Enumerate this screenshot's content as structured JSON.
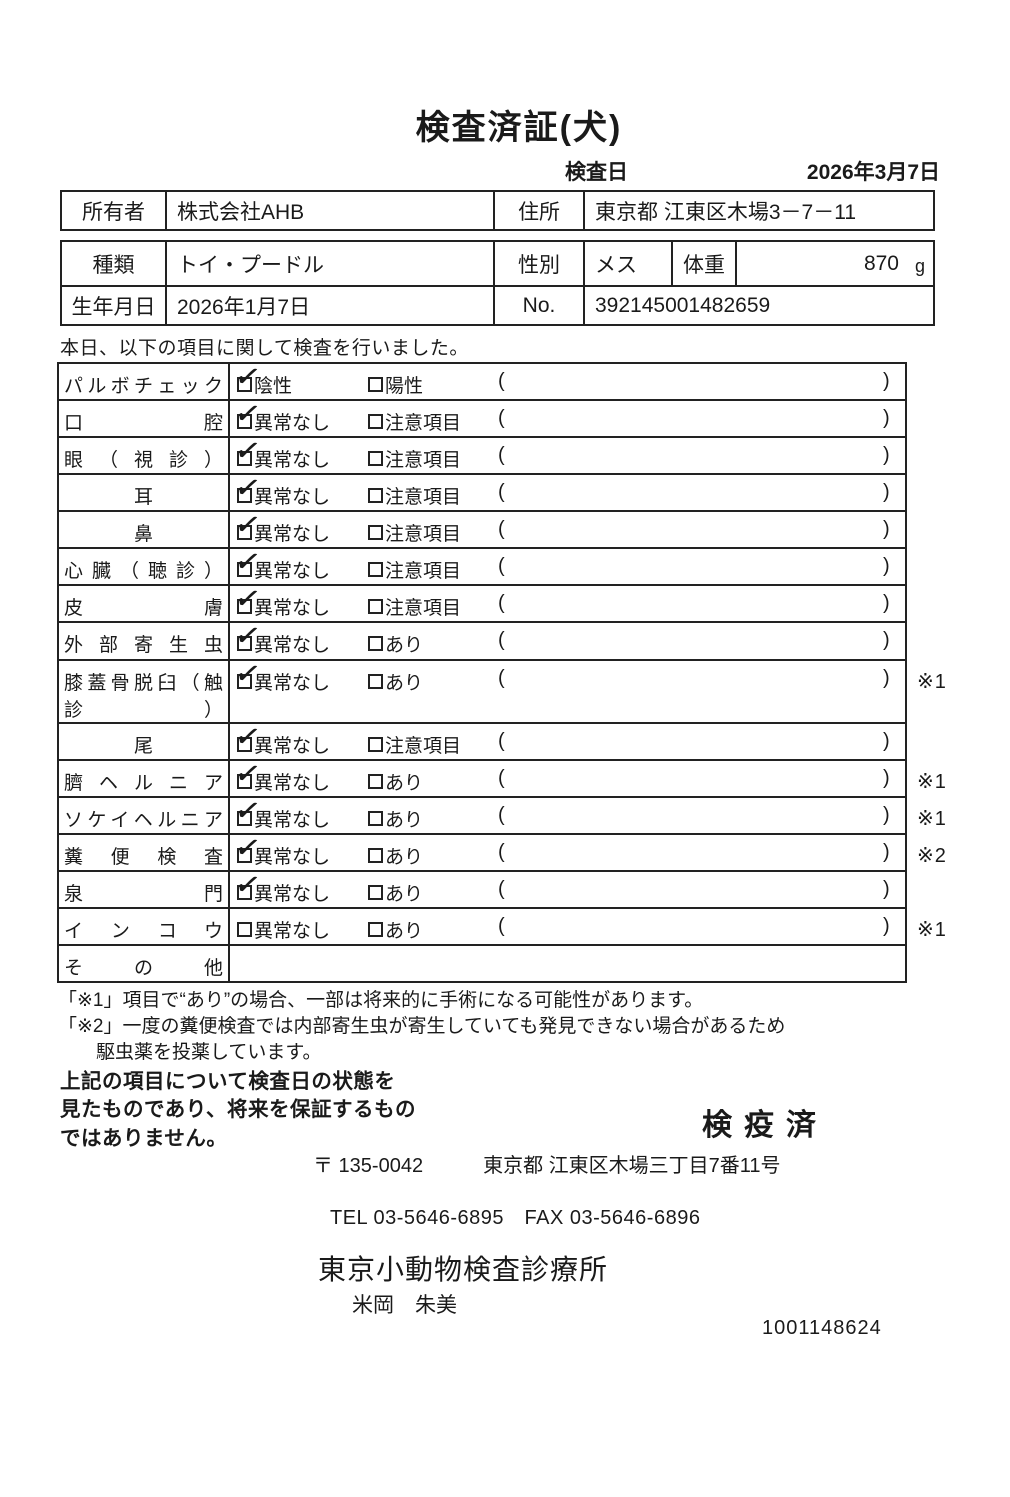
{
  "colors": {
    "ink": "#1a1a1a",
    "paper": "#ffffff"
  },
  "page": {
    "title": "検査済証(犬)"
  },
  "inspection": {
    "date_label": "検査日",
    "date": "2026年3月7日"
  },
  "owner_table": {
    "owner_label": "所有者",
    "owner": "株式会社AHB",
    "address_label": "住所",
    "address": "東京都 江東区木場3－7－11"
  },
  "pet_table": {
    "breed_label": "種類",
    "breed": "トイ・プードル",
    "sex_label": "性別",
    "sex": "メス",
    "weight_label": "体重",
    "weight": "870",
    "weight_unit": "g",
    "birth_label": "生年月日",
    "birth": "2026年1月7日",
    "no_label": "No.",
    "no": "392145001482659"
  },
  "checklist": {
    "intro": "本日、以下の項目に関して検査を行いました。",
    "check_glyph": "✓",
    "paren_open": "(",
    "paren_close": ")",
    "rows": [
      {
        "label": "パルボチェック",
        "options": [
          {
            "text": "陰性",
            "checked": true
          },
          {
            "text": "陽性",
            "checked": false
          }
        ],
        "note": ""
      },
      {
        "label": "口腔",
        "options": [
          {
            "text": "異常なし",
            "checked": true
          },
          {
            "text": "注意項目",
            "checked": false
          }
        ],
        "note": ""
      },
      {
        "label": "眼（視診）",
        "options": [
          {
            "text": "異常なし",
            "checked": true
          },
          {
            "text": "注意項目",
            "checked": false
          }
        ],
        "note": ""
      },
      {
        "label": "耳",
        "options": [
          {
            "text": "異常なし",
            "checked": true
          },
          {
            "text": "注意項目",
            "checked": false
          }
        ],
        "note": ""
      },
      {
        "label": "鼻",
        "options": [
          {
            "text": "異常なし",
            "checked": true
          },
          {
            "text": "注意項目",
            "checked": false
          }
        ],
        "note": ""
      },
      {
        "label": "心臓（聴診）",
        "options": [
          {
            "text": "異常なし",
            "checked": true
          },
          {
            "text": "注意項目",
            "checked": false
          }
        ],
        "note": ""
      },
      {
        "label": "皮膚",
        "options": [
          {
            "text": "異常なし",
            "checked": true
          },
          {
            "text": "注意項目",
            "checked": false
          }
        ],
        "note": ""
      },
      {
        "label": "外部寄生虫",
        "options": [
          {
            "text": "異常なし",
            "checked": true
          },
          {
            "text": "あり",
            "checked": false
          }
        ],
        "note": ""
      },
      {
        "label": "膝蓋骨脱臼（触診）",
        "options": [
          {
            "text": "異常なし",
            "checked": true
          },
          {
            "text": "あり",
            "checked": false
          }
        ],
        "note": "※1"
      },
      {
        "label": "尾",
        "options": [
          {
            "text": "異常なし",
            "checked": true
          },
          {
            "text": "注意項目",
            "checked": false
          }
        ],
        "note": ""
      },
      {
        "label": "臍ヘルニア",
        "options": [
          {
            "text": "異常なし",
            "checked": true
          },
          {
            "text": "あり",
            "checked": false
          }
        ],
        "note": "※1"
      },
      {
        "label": "ソケイヘルニア",
        "options": [
          {
            "text": "異常なし",
            "checked": true
          },
          {
            "text": "あり",
            "checked": false
          }
        ],
        "note": "※1"
      },
      {
        "label": "糞便検査",
        "options": [
          {
            "text": "異常なし",
            "checked": true
          },
          {
            "text": "あり",
            "checked": false
          }
        ],
        "note": "※2"
      },
      {
        "label": "泉門",
        "options": [
          {
            "text": "異常なし",
            "checked": true
          },
          {
            "text": "あり",
            "checked": false
          }
        ],
        "note": ""
      },
      {
        "label": "インコウ",
        "options": [
          {
            "text": "異常なし",
            "checked": false
          },
          {
            "text": "あり",
            "checked": false
          }
        ],
        "note": "※1"
      },
      {
        "label": "その他",
        "options": [],
        "note": ""
      }
    ]
  },
  "footnotes": {
    "lines": [
      "「※1」項目で“あり”の場合、一部は将来的に手術になる可能性があります。",
      "「※2」一度の糞便検査では内部寄生虫が寄生していても発見できない場合があるため",
      "　　駆虫薬を投薬しています。"
    ]
  },
  "disclaimer": {
    "lines": [
      "上記の項目について検査日の状態を",
      "見たものであり、将来を保証するもの",
      "ではありません。"
    ]
  },
  "stamp": {
    "text": "検疫済"
  },
  "contact": {
    "postal_line": "〒 135-0042　　　東京都 江東区木場三丁目7番11号",
    "tel_line": "TEL 03-5646-6895　FAX 03-5646-6896",
    "clinic_name": "東京小動物検査診療所",
    "veterinarian": "米岡　朱美",
    "serial_number": "1001148624"
  }
}
